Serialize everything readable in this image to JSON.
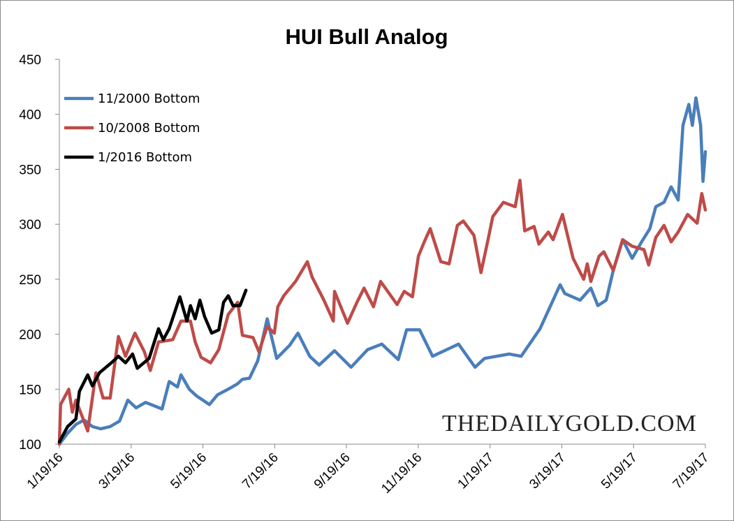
{
  "chart_data": {
    "type": "line",
    "title": "HUI Bull Analog",
    "xlabel": "",
    "ylabel": "",
    "ylim": [
      100,
      450
    ],
    "yticks": [
      "100",
      "150",
      "200",
      "250",
      "300",
      "350",
      "400",
      "450"
    ],
    "xlim": [
      "2016-01-19",
      "2017-07-19"
    ],
    "xticks": [
      "1/19/16",
      "3/19/16",
      "5/19/16",
      "7/19/16",
      "9/19/16",
      "11/19/16",
      "1/19/17",
      "3/19/17",
      "5/19/17",
      "7/19/17"
    ],
    "grid": false,
    "legend_position": "top-left",
    "watermark": "THEDAILYGOLD.COM",
    "series": [
      {
        "name": "11/2000 Bottom",
        "color": "#4a7ebb",
        "points": [
          [
            "2016-01-19",
            100
          ],
          [
            "2016-01-26",
            110
          ],
          [
            "2016-02-02",
            118
          ],
          [
            "2016-02-09",
            122
          ],
          [
            "2016-02-16",
            116
          ],
          [
            "2016-02-23",
            114
          ],
          [
            "2016-03-02",
            116
          ],
          [
            "2016-03-10",
            121
          ],
          [
            "2016-03-17",
            140
          ],
          [
            "2016-03-24",
            133
          ],
          [
            "2016-04-01",
            138
          ],
          [
            "2016-04-08",
            135
          ],
          [
            "2016-04-15",
            132
          ],
          [
            "2016-04-21",
            157
          ],
          [
            "2016-04-28",
            152
          ],
          [
            "2016-05-01",
            163
          ],
          [
            "2016-05-08",
            150
          ],
          [
            "2016-05-14",
            144
          ],
          [
            "2016-05-25",
            136
          ],
          [
            "2016-06-01",
            145
          ],
          [
            "2016-06-10",
            150
          ],
          [
            "2016-06-18",
            155
          ],
          [
            "2016-06-22",
            159
          ],
          [
            "2016-06-28",
            160
          ],
          [
            "2016-07-05",
            176
          ],
          [
            "2016-07-13",
            214
          ],
          [
            "2016-07-21",
            178
          ],
          [
            "2016-08-01",
            190
          ],
          [
            "2016-08-08",
            201
          ],
          [
            "2016-08-18",
            180
          ],
          [
            "2016-08-26",
            172
          ],
          [
            "2016-09-08",
            185
          ],
          [
            "2016-09-22",
            170
          ],
          [
            "2016-10-06",
            186
          ],
          [
            "2016-10-18",
            191
          ],
          [
            "2016-11-01",
            177
          ],
          [
            "2016-11-08",
            204
          ],
          [
            "2016-11-19",
            204
          ],
          [
            "2016-11-30",
            180
          ],
          [
            "2016-12-22",
            191
          ],
          [
            "2017-01-05",
            170
          ],
          [
            "2017-01-13",
            178
          ],
          [
            "2017-02-03",
            182
          ],
          [
            "2017-02-13",
            180
          ],
          [
            "2017-03-01",
            205
          ],
          [
            "2017-03-18",
            245
          ],
          [
            "2017-03-22",
            237
          ],
          [
            "2017-04-04",
            231
          ],
          [
            "2017-04-13",
            242
          ],
          [
            "2017-04-19",
            226
          ],
          [
            "2017-04-26",
            231
          ],
          [
            "2017-05-02",
            258
          ],
          [
            "2017-05-10",
            286
          ],
          [
            "2017-05-18",
            269
          ],
          [
            "2017-05-26",
            284
          ],
          [
            "2017-06-02",
            296
          ],
          [
            "2017-06-07",
            316
          ],
          [
            "2017-06-14",
            320
          ],
          [
            "2017-06-20",
            334
          ],
          [
            "2017-06-26",
            322
          ],
          [
            "2017-06-30",
            390
          ],
          [
            "2017-07-05",
            409
          ],
          [
            "2017-07-08",
            390
          ],
          [
            "2017-07-11",
            415
          ],
          [
            "2017-07-15",
            390
          ],
          [
            "2017-07-17",
            339
          ],
          [
            "2017-07-19",
            366
          ]
        ]
      },
      {
        "name": "10/2008 Bottom",
        "color": "#be4b48",
        "points": [
          [
            "2016-01-19",
            100
          ],
          [
            "2016-01-20",
            136
          ],
          [
            "2016-01-27",
            150
          ],
          [
            "2016-01-30",
            129
          ],
          [
            "2016-02-02",
            140
          ],
          [
            "2016-02-12",
            112
          ],
          [
            "2016-02-19",
            165
          ],
          [
            "2016-02-25",
            142
          ],
          [
            "2016-03-02",
            142
          ],
          [
            "2016-03-09",
            198
          ],
          [
            "2016-03-15",
            180
          ],
          [
            "2016-03-23",
            201
          ],
          [
            "2016-03-31",
            184
          ],
          [
            "2016-04-05",
            167
          ],
          [
            "2016-04-12",
            193
          ],
          [
            "2016-04-24",
            195
          ],
          [
            "2016-05-01",
            212
          ],
          [
            "2016-05-09",
            212
          ],
          [
            "2016-05-13",
            193
          ],
          [
            "2016-05-18",
            179
          ],
          [
            "2016-05-26",
            174
          ],
          [
            "2016-06-02",
            186
          ],
          [
            "2016-06-10",
            218
          ],
          [
            "2016-06-18",
            229
          ],
          [
            "2016-06-22",
            199
          ],
          [
            "2016-07-01",
            197
          ],
          [
            "2016-07-06",
            184
          ],
          [
            "2016-07-13",
            207
          ],
          [
            "2016-07-19",
            201
          ],
          [
            "2016-07-22",
            225
          ],
          [
            "2016-07-27",
            235
          ],
          [
            "2016-08-06",
            248
          ],
          [
            "2016-08-16",
            266
          ],
          [
            "2016-08-20",
            252
          ],
          [
            "2016-08-30",
            231
          ],
          [
            "2016-09-07",
            212
          ],
          [
            "2016-09-08",
            239
          ],
          [
            "2016-09-19",
            210
          ],
          [
            "2016-09-27",
            229
          ],
          [
            "2016-10-03",
            242
          ],
          [
            "2016-10-11",
            225
          ],
          [
            "2016-10-17",
            248
          ],
          [
            "2016-10-31",
            227
          ],
          [
            "2016-11-06",
            239
          ],
          [
            "2016-11-13",
            234
          ],
          [
            "2016-11-18",
            271
          ],
          [
            "2016-11-23",
            284
          ],
          [
            "2016-11-28",
            296
          ],
          [
            "2016-12-07",
            266
          ],
          [
            "2016-12-14",
            264
          ],
          [
            "2016-12-21",
            299
          ],
          [
            "2016-12-26",
            303
          ],
          [
            "2017-01-04",
            290
          ],
          [
            "2017-01-10",
            256
          ],
          [
            "2017-01-16",
            286
          ],
          [
            "2017-01-20",
            307
          ],
          [
            "2017-01-29",
            320
          ],
          [
            "2017-02-08",
            316
          ],
          [
            "2017-02-12",
            340
          ],
          [
            "2017-02-16",
            294
          ],
          [
            "2017-02-24",
            298
          ],
          [
            "2017-02-28",
            282
          ],
          [
            "2017-03-08",
            293
          ],
          [
            "2017-03-12",
            286
          ],
          [
            "2017-03-20",
            309
          ],
          [
            "2017-03-29",
            269
          ],
          [
            "2017-04-07",
            250
          ],
          [
            "2017-04-10",
            264
          ],
          [
            "2017-04-13",
            248
          ],
          [
            "2017-04-20",
            271
          ],
          [
            "2017-04-24",
            275
          ],
          [
            "2017-05-02",
            258
          ],
          [
            "2017-05-10",
            286
          ],
          [
            "2017-05-18",
            280
          ],
          [
            "2017-05-28",
            277
          ],
          [
            "2017-06-01",
            263
          ],
          [
            "2017-06-07",
            288
          ],
          [
            "2017-06-14",
            299
          ],
          [
            "2017-06-20",
            284
          ],
          [
            "2017-06-26",
            293
          ],
          [
            "2017-07-04",
            309
          ],
          [
            "2017-07-12",
            301
          ],
          [
            "2017-07-16",
            328
          ],
          [
            "2017-07-19",
            313
          ]
        ]
      },
      {
        "name": "1/2016 Bottom",
        "color": "#000000",
        "points": [
          [
            "2016-01-19",
            102
          ],
          [
            "2016-01-26",
            116
          ],
          [
            "2016-02-02",
            123
          ],
          [
            "2016-02-05",
            148
          ],
          [
            "2016-02-12",
            163
          ],
          [
            "2016-02-16",
            153
          ],
          [
            "2016-02-22",
            165
          ],
          [
            "2016-03-03",
            174
          ],
          [
            "2016-03-09",
            180
          ],
          [
            "2016-03-15",
            174
          ],
          [
            "2016-03-21",
            182
          ],
          [
            "2016-03-25",
            169
          ],
          [
            "2016-04-04",
            178
          ],
          [
            "2016-04-12",
            205
          ],
          [
            "2016-04-16",
            195
          ],
          [
            "2016-04-21",
            205
          ],
          [
            "2016-04-30",
            234
          ],
          [
            "2016-05-06",
            212
          ],
          [
            "2016-05-09",
            226
          ],
          [
            "2016-05-13",
            214
          ],
          [
            "2016-05-17",
            231
          ],
          [
            "2016-05-21",
            216
          ],
          [
            "2016-05-27",
            201
          ],
          [
            "2016-06-02",
            204
          ],
          [
            "2016-06-06",
            229
          ],
          [
            "2016-06-10",
            235
          ],
          [
            "2016-06-14",
            226
          ],
          [
            "2016-06-20",
            226
          ],
          [
            "2016-06-25",
            240
          ]
        ]
      }
    ]
  }
}
